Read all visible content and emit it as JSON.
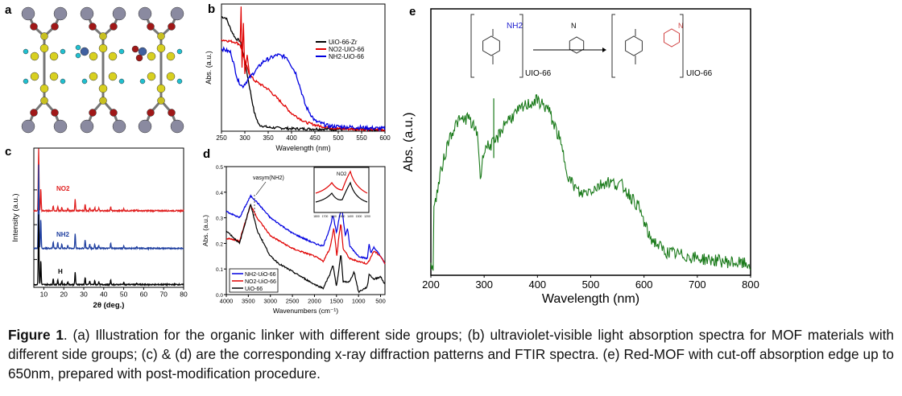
{
  "panel_labels": [
    "a",
    "b",
    "c",
    "d",
    "e"
  ],
  "caption": {
    "figure_label": "Figure 1",
    "text": ". (a) Illustration for the organic linker with different side groups; (b) ultraviolet-visible light absorption spectra for MOF materials with different side groups; (c) & (d) are the corresponding x-ray diffraction patterns and FTIR spectra. (e) Red-MOF with cut-off absorption edge up to 650nm, prepared with post-modification procedure."
  },
  "scheme": {
    "left_label": "UIO-66",
    "right_label": "UIO-66",
    "amine": "NH2",
    "azo_n": "N",
    "reagent_n": "N"
  },
  "chart_data": [
    {
      "id": "b",
      "type": "line",
      "xlabel": "Wavelength (nm)",
      "ylabel": "Abs. (a.u.)",
      "xlim": [
        250,
        600
      ],
      "ylim": [
        0,
        1
      ],
      "xticks": [
        250,
        300,
        350,
        400,
        450,
        500,
        550,
        600
      ],
      "legend_position": "top-right",
      "series": [
        {
          "name": "UiO-66-Zr",
          "color": "#000000",
          "points": [
            [
              250,
              0.9
            ],
            [
              260,
              0.89
            ],
            [
              270,
              0.8
            ],
            [
              280,
              0.73
            ],
            [
              290,
              0.71
            ],
            [
              300,
              0.55
            ],
            [
              310,
              0.35
            ],
            [
              320,
              0.15
            ],
            [
              330,
              0.05
            ],
            [
              350,
              0.03
            ],
            [
              400,
              0.02
            ],
            [
              600,
              0.01
            ]
          ]
        },
        {
          "name": "NO2-UiO-66",
          "color": "#e00000",
          "points": [
            [
              250,
              0.72
            ],
            [
              280,
              0.7
            ],
            [
              290,
              0.68
            ],
            [
              300,
              0.55
            ],
            [
              310,
              0.45
            ],
            [
              320,
              0.4
            ],
            [
              350,
              0.33
            ],
            [
              380,
              0.22
            ],
            [
              400,
              0.14
            ],
            [
              430,
              0.07
            ],
            [
              460,
              0.04
            ],
            [
              500,
              0.02
            ],
            [
              600,
              0.01
            ]
          ]
        },
        {
          "name": "NH2-UiO-66",
          "color": "#0000e0",
          "points": [
            [
              250,
              0.65
            ],
            [
              270,
              0.62
            ],
            [
              285,
              0.4
            ],
            [
              295,
              0.35
            ],
            [
              310,
              0.42
            ],
            [
              340,
              0.55
            ],
            [
              370,
              0.6
            ],
            [
              390,
              0.58
            ],
            [
              410,
              0.45
            ],
            [
              430,
              0.2
            ],
            [
              450,
              0.08
            ],
            [
              480,
              0.04
            ],
            [
              600,
              0.02
            ]
          ]
        }
      ]
    },
    {
      "id": "c",
      "type": "line",
      "xlabel": "2θ (deg.)",
      "ylabel": "Intensity (a.u.)",
      "xlim": [
        5,
        80
      ],
      "ylim": [
        0,
        1
      ],
      "xticks": [
        10,
        20,
        30,
        40,
        50,
        60,
        70,
        80
      ],
      "peaks": [
        [
          7.4,
          1
        ],
        [
          8.5,
          0.35
        ],
        [
          14.7,
          0.08
        ],
        [
          17,
          0.07
        ],
        [
          19,
          0.05
        ],
        [
          22,
          0.04
        ],
        [
          25.7,
          0.18
        ],
        [
          30.7,
          0.1
        ],
        [
          33,
          0.05
        ],
        [
          35.5,
          0.05
        ],
        [
          37.5,
          0.04
        ],
        [
          43.5,
          0.06
        ],
        [
          50,
          0.03
        ],
        [
          56.5,
          0.02
        ]
      ],
      "series": [
        {
          "name": "NO2",
          "color": "#e02020",
          "baseline": 0.55,
          "scale": 0.45
        },
        {
          "name": "NH2",
          "color": "#2040a0",
          "baseline": 0.28,
          "scale": 0.6
        },
        {
          "name": "H",
          "color": "#000000",
          "baseline": 0.02,
          "scale": 0.5
        }
      ]
    },
    {
      "id": "d",
      "type": "line",
      "xlabel": "Wavenumbers (cm⁻¹)",
      "ylabel": "Abs. (a.u.)",
      "xlim": [
        4000,
        400
      ],
      "ylim": [
        0,
        0.5
      ],
      "xticks": [
        4000,
        3500,
        3000,
        2500,
        2000,
        1500,
        1000,
        500
      ],
      "yticks": [
        0.0,
        0.1,
        0.2,
        0.3,
        0.4,
        0.5
      ],
      "annotation": "νasym(NH2)",
      "inset": {
        "label": "NO2",
        "xticks": [
          1800,
          1700,
          1600,
          1500,
          1400,
          1300,
          1200
        ]
      },
      "legend_position": "bottom-left",
      "series": [
        {
          "name": "NH2-UiO-66",
          "color": "#0000e0",
          "points": [
            [
              4000,
              0.325
            ],
            [
              3700,
              0.3
            ],
            [
              3450,
              0.385
            ],
            [
              3350,
              0.37
            ],
            [
              3000,
              0.3
            ],
            [
              2500,
              0.24
            ],
            [
              2000,
              0.2
            ],
            [
              1800,
              0.19
            ],
            [
              1650,
              0.26
            ],
            [
              1580,
              0.31
            ],
            [
              1500,
              0.24
            ],
            [
              1430,
              0.31
            ],
            [
              1380,
              0.34
            ],
            [
              1300,
              0.23
            ],
            [
              1250,
              0.26
            ],
            [
              1200,
              0.19
            ],
            [
              1000,
              0.15
            ],
            [
              800,
              0.14
            ],
            [
              760,
              0.2
            ],
            [
              720,
              0.16
            ],
            [
              650,
              0.185
            ],
            [
              500,
              0.15
            ],
            [
              400,
              0.12
            ]
          ]
        },
        {
          "name": "NO2-UiO-66",
          "color": "#e00000",
          "points": [
            [
              4000,
              0.22
            ],
            [
              3700,
              0.21
            ],
            [
              3450,
              0.35
            ],
            [
              3300,
              0.3
            ],
            [
              3000,
              0.23
            ],
            [
              2500,
              0.18
            ],
            [
              2000,
              0.15
            ],
            [
              1800,
              0.13
            ],
            [
              1650,
              0.18
            ],
            [
              1560,
              0.26
            ],
            [
              1490,
              0.15
            ],
            [
              1450,
              0.22
            ],
            [
              1400,
              0.28
            ],
            [
              1350,
              0.18
            ],
            [
              1200,
              0.14
            ],
            [
              800,
              0.12
            ],
            [
              650,
              0.17
            ],
            [
              500,
              0.15
            ],
            [
              400,
              0.12
            ]
          ]
        },
        {
          "name": "UiO-66",
          "color": "#000000",
          "points": [
            [
              4000,
              0.25
            ],
            [
              3700,
              0.2
            ],
            [
              3450,
              0.355
            ],
            [
              3300,
              0.25
            ],
            [
              3000,
              0.15
            ],
            [
              2800,
              0.12
            ],
            [
              2500,
              0.09
            ],
            [
              2000,
              0.04
            ],
            [
              1800,
              0.025
            ],
            [
              1650,
              0.08
            ],
            [
              1580,
              0.115
            ],
            [
              1500,
              0.03
            ],
            [
              1400,
              0.16
            ],
            [
              1350,
              0.05
            ],
            [
              1200,
              0.05
            ],
            [
              1100,
              0.09
            ],
            [
              1000,
              0.01
            ],
            [
              800,
              0.03
            ],
            [
              760,
              0.08
            ],
            [
              650,
              0.06
            ],
            [
              500,
              0.07
            ],
            [
              400,
              0.04
            ]
          ]
        }
      ]
    },
    {
      "id": "e",
      "type": "line",
      "xlabel": "Wavelength (nm)",
      "ylabel": "Abs. (a.u.)",
      "xlim": [
        200,
        800
      ],
      "ylim": [
        0,
        1.25
      ],
      "xticks": [
        200,
        300,
        400,
        500,
        600,
        700,
        800
      ],
      "series": [
        {
          "name": "Red-MOF",
          "color": "#1a7a1a",
          "points": [
            [
              205,
              0.3
            ],
            [
              220,
              0.5
            ],
            [
              235,
              0.65
            ],
            [
              250,
              0.72
            ],
            [
              270,
              0.74
            ],
            [
              288,
              0.66
            ],
            [
              293,
              0.45
            ],
            [
              300,
              0.6
            ],
            [
              320,
              0.62
            ],
            [
              340,
              0.72
            ],
            [
              380,
              0.8
            ],
            [
              400,
              0.82
            ],
            [
              420,
              0.78
            ],
            [
              440,
              0.65
            ],
            [
              460,
              0.45
            ],
            [
              480,
              0.38
            ],
            [
              500,
              0.4
            ],
            [
              530,
              0.44
            ],
            [
              560,
              0.42
            ],
            [
              590,
              0.32
            ],
            [
              610,
              0.18
            ],
            [
              640,
              0.11
            ],
            [
              700,
              0.08
            ],
            [
              800,
              0.05
            ]
          ]
        }
      ]
    }
  ]
}
